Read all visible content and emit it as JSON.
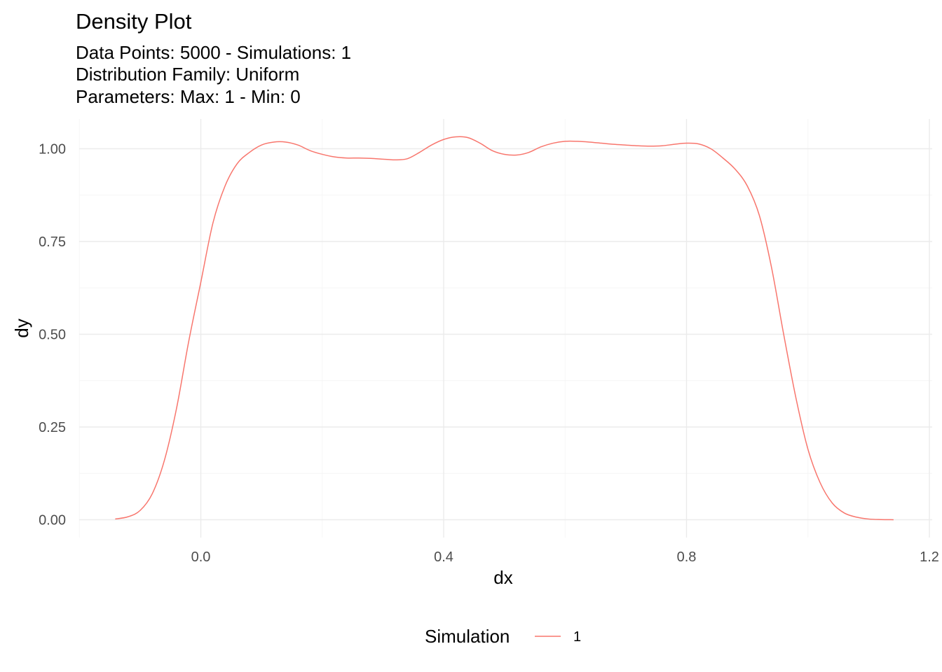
{
  "chart_data": {
    "type": "line",
    "title": "Density Plot",
    "subtitle_lines": [
      "Data Points: 5000 - Simulations: 1",
      "Distribution Family: Uniform",
      "Parameters: Max: 1 - Min: 0"
    ],
    "xlabel": "dx",
    "ylabel": "dy",
    "xlim": [
      -0.2,
      1.2
    ],
    "ylim": [
      -0.05,
      1.07
    ],
    "x_ticks": [
      0.0,
      0.4,
      0.8,
      1.2
    ],
    "x_tick_labels": [
      "0.0",
      "0.4",
      "0.8",
      "1.2"
    ],
    "y_ticks": [
      0.0,
      0.25,
      0.5,
      0.75,
      1.0
    ],
    "y_tick_labels": [
      "0.00",
      "0.25",
      "0.50",
      "0.75",
      "1.00"
    ],
    "grid": true,
    "legend": {
      "title": "Simulation",
      "position": "bottom",
      "entries": [
        {
          "label": "1",
          "color": "#F8766D"
        }
      ]
    },
    "series": [
      {
        "name": "1",
        "color": "#F8766D",
        "x": [
          -0.141,
          -0.12,
          -0.1,
          -0.08,
          -0.06,
          -0.04,
          -0.02,
          0.0,
          0.02,
          0.04,
          0.06,
          0.08,
          0.1,
          0.12,
          0.14,
          0.16,
          0.18,
          0.2,
          0.22,
          0.24,
          0.26,
          0.28,
          0.3,
          0.32,
          0.34,
          0.36,
          0.38,
          0.4,
          0.42,
          0.44,
          0.46,
          0.48,
          0.5,
          0.52,
          0.54,
          0.56,
          0.58,
          0.6,
          0.62,
          0.64,
          0.66,
          0.68,
          0.7,
          0.72,
          0.74,
          0.76,
          0.78,
          0.8,
          0.82,
          0.84,
          0.86,
          0.88,
          0.9,
          0.92,
          0.94,
          0.96,
          0.98,
          1.0,
          1.02,
          1.04,
          1.06,
          1.08,
          1.1,
          1.12,
          1.141
        ],
        "y": [
          0.002,
          0.008,
          0.025,
          0.07,
          0.16,
          0.3,
          0.48,
          0.64,
          0.8,
          0.9,
          0.96,
          0.99,
          1.01,
          1.018,
          1.018,
          1.01,
          0.995,
          0.985,
          0.978,
          0.975,
          0.975,
          0.974,
          0.972,
          0.97,
          0.973,
          0.99,
          1.01,
          1.025,
          1.032,
          1.03,
          1.015,
          0.995,
          0.985,
          0.983,
          0.99,
          1.005,
          1.015,
          1.02,
          1.02,
          1.018,
          1.015,
          1.012,
          1.01,
          1.008,
          1.007,
          1.008,
          1.012,
          1.015,
          1.013,
          1.0,
          0.975,
          0.945,
          0.9,
          0.82,
          0.68,
          0.5,
          0.33,
          0.19,
          0.1,
          0.045,
          0.018,
          0.007,
          0.002,
          0.0005,
          0.0001
        ]
      }
    ]
  }
}
